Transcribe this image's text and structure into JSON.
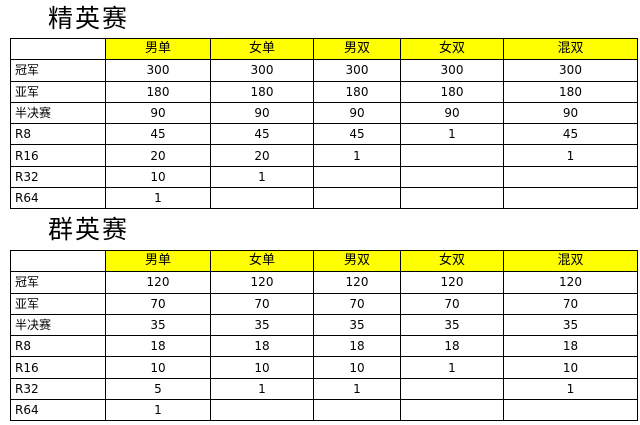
{
  "columns": [
    "男单",
    "女单",
    "男双",
    "女双",
    "混双"
  ],
  "header_color": "#ffff00",
  "tables": [
    {
      "title": "精英赛",
      "rows": [
        {
          "label": "冠军",
          "values": [
            "300",
            "300",
            "300",
            "300",
            "300"
          ]
        },
        {
          "label": "亚军",
          "values": [
            "180",
            "180",
            "180",
            "180",
            "180"
          ]
        },
        {
          "label": "半决赛",
          "values": [
            "90",
            "90",
            "90",
            "90",
            "90"
          ]
        },
        {
          "label": "R8",
          "values": [
            "45",
            "45",
            "45",
            "1",
            "45"
          ]
        },
        {
          "label": "R16",
          "values": [
            "20",
            "20",
            "1",
            "",
            "1"
          ]
        },
        {
          "label": "R32",
          "values": [
            "10",
            "1",
            "",
            "",
            ""
          ]
        },
        {
          "label": "R64",
          "values": [
            "1",
            "",
            "",
            "",
            ""
          ]
        }
      ]
    },
    {
      "title": "群英赛",
      "rows": [
        {
          "label": "冠军",
          "values": [
            "120",
            "120",
            "120",
            "120",
            "120"
          ]
        },
        {
          "label": "亚军",
          "values": [
            "70",
            "70",
            "70",
            "70",
            "70"
          ]
        },
        {
          "label": "半决赛",
          "values": [
            "35",
            "35",
            "35",
            "35",
            "35"
          ]
        },
        {
          "label": "R8",
          "values": [
            "18",
            "18",
            "18",
            "18",
            "18"
          ]
        },
        {
          "label": "R16",
          "values": [
            "10",
            "10",
            "10",
            "1",
            "10"
          ]
        },
        {
          "label": "R32",
          "values": [
            "5",
            "1",
            "1",
            "",
            "1"
          ]
        },
        {
          "label": "R64",
          "values": [
            "1",
            "",
            "",
            "",
            ""
          ]
        }
      ]
    }
  ]
}
